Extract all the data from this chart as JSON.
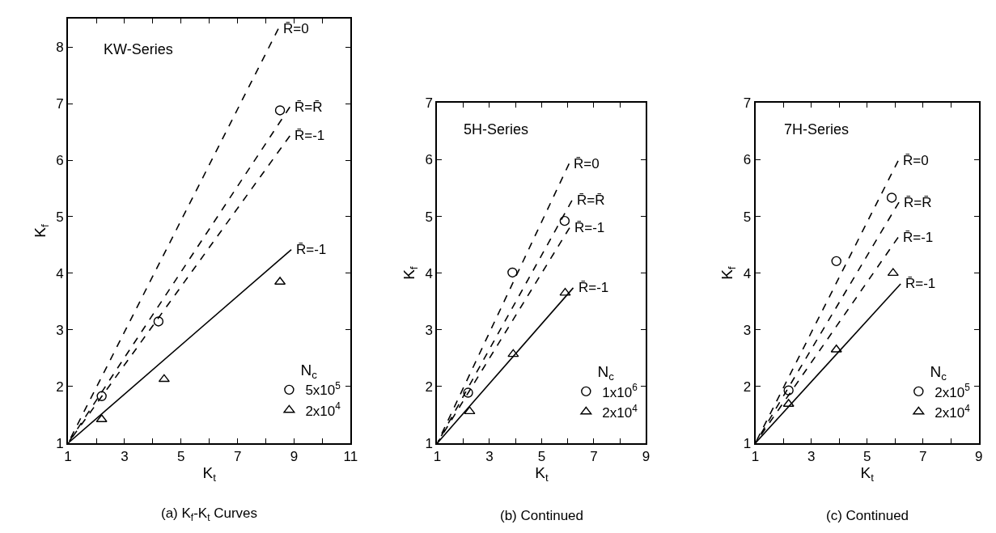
{
  "chart_data": [
    {
      "type": "line",
      "title": "KW-Series",
      "xlabel": "K$_{t}$",
      "ylabel": "K$_{f}$",
      "legend_title": "N$_{c}$",
      "legend": "bottom right",
      "grid": false,
      "xlim": [
        1,
        11
      ],
      "ylim": [
        1,
        8.5
      ],
      "xticks": [
        1,
        {
          "value": 2,
          "label": null
        },
        3,
        {
          "value": 4,
          "label": null
        },
        5,
        {
          "value": 6,
          "label": null
        },
        7,
        {
          "value": 8,
          "label": null
        },
        9,
        {
          "value": 10,
          "label": null
        },
        11
      ],
      "yticks": [
        1,
        2,
        3,
        4,
        5,
        6,
        7,
        8
      ],
      "annotations": [
        {
          "text": "R̄=0",
          "x": 8.44,
          "y": 8.32
        },
        {
          "text": "R̄=R̄",
          "x": 8.85,
          "y": 6.94
        },
        {
          "text": "R̄=-1",
          "x": 8.85,
          "y": 6.43
        },
        {
          "text": "R̄=-1",
          "x": 8.9,
          "y": 4.42
        },
        "(a) K$_{f}$-K$_{t}$ Curves"
      ],
      "series": [
        {
          "color": "#000000",
          "line_style": "dashed",
          "marker": "none",
          "x": [
            1,
            8.44
          ],
          "values": [
            1,
            8.32
          ]
        },
        {
          "color": "#000000",
          "line_style": "dashed",
          "marker": "none",
          "x": [
            1,
            8.85
          ],
          "values": [
            1,
            6.94
          ]
        },
        {
          "color": "#000000",
          "line_style": "dashed",
          "marker": "none",
          "x": [
            1,
            8.85
          ],
          "values": [
            1,
            6.43
          ]
        },
        {
          "color": "#000000",
          "line_style": "solid",
          "marker": "none",
          "x": [
            1,
            8.9
          ],
          "values": [
            1,
            4.42
          ]
        },
        {
          "type": "scatter",
          "name": "5x10$^{5}$",
          "color": "#000000",
          "marker": "circle",
          "x": [
            2.19,
            4.2,
            8.5
          ],
          "values": [
            1.83,
            3.15,
            6.88
          ]
        },
        {
          "type": "scatter",
          "name": "2x10$^{4}$",
          "color": "#000000",
          "marker": "triangle",
          "x": [
            2.19,
            4.4,
            8.5
          ],
          "values": [
            1.42,
            2.13,
            3.85
          ]
        }
      ]
    },
    {
      "type": "line",
      "title": "5H-Series",
      "xlabel": "K$_{t}$",
      "ylabel": "K$_{f}$",
      "legend_title": "N$_{c}$",
      "legend": "bottom right",
      "grid": false,
      "xlim": [
        1,
        9
      ],
      "ylim": [
        1,
        7
      ],
      "xticks": [
        1,
        {
          "value": 2,
          "label": null
        },
        3,
        {
          "value": 4,
          "label": null
        },
        5,
        {
          "value": 6,
          "label": null
        },
        7,
        {
          "value": 8,
          "label": null
        },
        9
      ],
      "yticks": [
        1,
        2,
        3,
        4,
        5,
        6,
        7
      ],
      "annotations": [
        {
          "text": "R̄=0",
          "x": 6.05,
          "y": 5.93
        },
        {
          "text": "R̄=R̄",
          "x": 6.16,
          "y": 5.28
        },
        {
          "text": "R̄=-1",
          "x": 6.07,
          "y": 4.8
        },
        {
          "text": "R̄=-1",
          "x": 6.21,
          "y": 3.74
        },
        "(b) Continued"
      ],
      "series": [
        {
          "color": "#000000",
          "line_style": "dashed",
          "marker": "none",
          "x": [
            1,
            6.05
          ],
          "values": [
            1,
            5.93
          ]
        },
        {
          "color": "#000000",
          "line_style": "dashed",
          "marker": "none",
          "x": [
            1,
            6.16
          ],
          "values": [
            1,
            5.28
          ]
        },
        {
          "color": "#000000",
          "line_style": "dashed",
          "marker": "none",
          "x": [
            1,
            6.07
          ],
          "values": [
            1,
            4.8
          ]
        },
        {
          "color": "#000000",
          "line_style": "solid",
          "marker": "none",
          "x": [
            1,
            6.21
          ],
          "values": [
            1,
            3.74
          ]
        },
        {
          "type": "scatter",
          "name": "1x10$^{6}$",
          "color": "#000000",
          "marker": "circle",
          "x": [
            2.18,
            3.88,
            5.88
          ],
          "values": [
            1.89,
            4.01,
            4.92
          ]
        },
        {
          "type": "scatter",
          "name": "2x10$^{4}$",
          "color": "#000000",
          "marker": "triangle",
          "x": [
            2.24,
            3.91,
            5.9
          ],
          "values": [
            1.56,
            2.57,
            3.65
          ]
        }
      ]
    },
    {
      "type": "line",
      "title": "7H-Series",
      "xlabel": "K$_{t}$",
      "ylabel": "K$_{f}$",
      "legend_title": "N$_{c}$",
      "legend": "bottom right",
      "grid": false,
      "xlim": [
        1,
        9
      ],
      "ylim": [
        1,
        7
      ],
      "xticks": [
        1,
        {
          "value": 2,
          "label": null
        },
        3,
        {
          "value": 4,
          "label": null
        },
        5,
        {
          "value": 6,
          "label": null
        },
        7,
        {
          "value": 8,
          "label": null
        },
        9
      ],
      "yticks": [
        1,
        2,
        3,
        4,
        5,
        6,
        7
      ],
      "annotations": [
        {
          "text": "R̄=0",
          "x": 6.11,
          "y": 5.98
        },
        {
          "text": "R̄=R̄",
          "x": 6.14,
          "y": 5.25
        },
        {
          "text": "R̄=-1",
          "x": 6.11,
          "y": 4.63
        },
        {
          "text": "R̄=-1",
          "x": 6.2,
          "y": 3.81
        },
        "(c) Continued"
      ],
      "series": [
        {
          "color": "#000000",
          "line_style": "dashed",
          "marker": "none",
          "x": [
            1,
            6.11
          ],
          "values": [
            1,
            5.98
          ]
        },
        {
          "color": "#000000",
          "line_style": "dashed",
          "marker": "none",
          "x": [
            1,
            6.14
          ],
          "values": [
            1,
            5.25
          ]
        },
        {
          "color": "#000000",
          "line_style": "dashed",
          "marker": "none",
          "x": [
            1,
            6.11
          ],
          "values": [
            1,
            4.63
          ]
        },
        {
          "color": "#000000",
          "line_style": "solid",
          "marker": "none",
          "x": [
            1,
            6.2
          ],
          "values": [
            1,
            3.81
          ]
        },
        {
          "type": "scatter",
          "name": "2x10$^{5}$",
          "color": "#000000",
          "marker": "circle",
          "x": [
            2.19,
            3.9,
            5.88
          ],
          "values": [
            1.93,
            4.21,
            5.33
          ]
        },
        {
          "type": "scatter",
          "name": "2x10$^{4}$",
          "color": "#000000",
          "marker": "triangle",
          "x": [
            2.19,
            3.9,
            5.93
          ],
          "values": [
            1.69,
            2.65,
            4.0
          ]
        }
      ]
    }
  ]
}
